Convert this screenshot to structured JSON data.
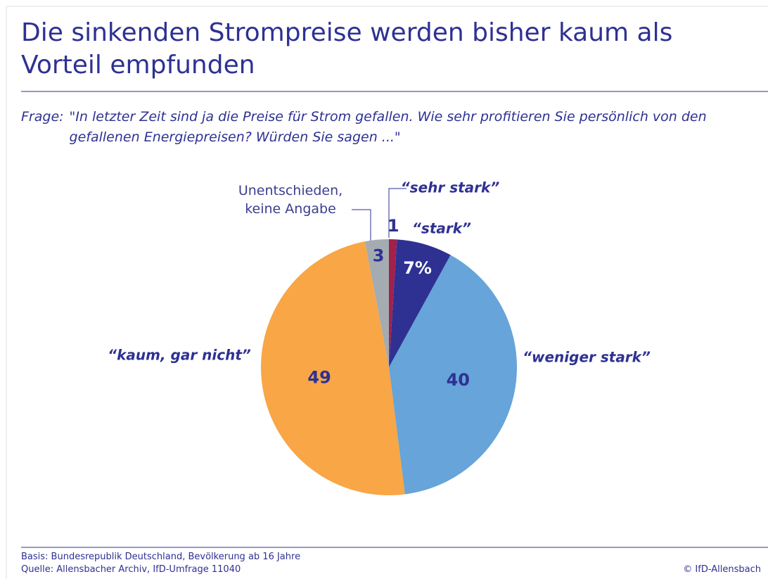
{
  "title": "Die sinkenden Strompreise werden bisher kaum als Vorteil empfunden",
  "question_label": "Frage:",
  "question": "\"In letzter Zeit sind ja die Preise für Strom gefallen. Wie sehr profitieren Sie persönlich von den gefallenen Energiepreisen? Würden Sie sagen ...\"",
  "chart_data": {
    "type": "pie",
    "categories": [
      "“sehr stark”",
      "“stark”",
      "“weniger stark”",
      "“kaum, gar nicht”",
      "Unentschieden, keine Angabe"
    ],
    "values": [
      1,
      7,
      40,
      49,
      3
    ],
    "value_labels": [
      "1",
      "7%",
      "40",
      "49",
      "3"
    ],
    "colors": [
      "#a3204b",
      "#2e3192",
      "#66a4d9",
      "#f8a646",
      "#a4abb1"
    ]
  },
  "footer": {
    "basis": "Basis: Bundesrepublik Deutschland, Bevölkerung ab 16 Jahre",
    "source": "Quelle: Allensbacher Archiv, IfD-Umfrage 11040",
    "copyright": "© IfD-Allensbach"
  }
}
